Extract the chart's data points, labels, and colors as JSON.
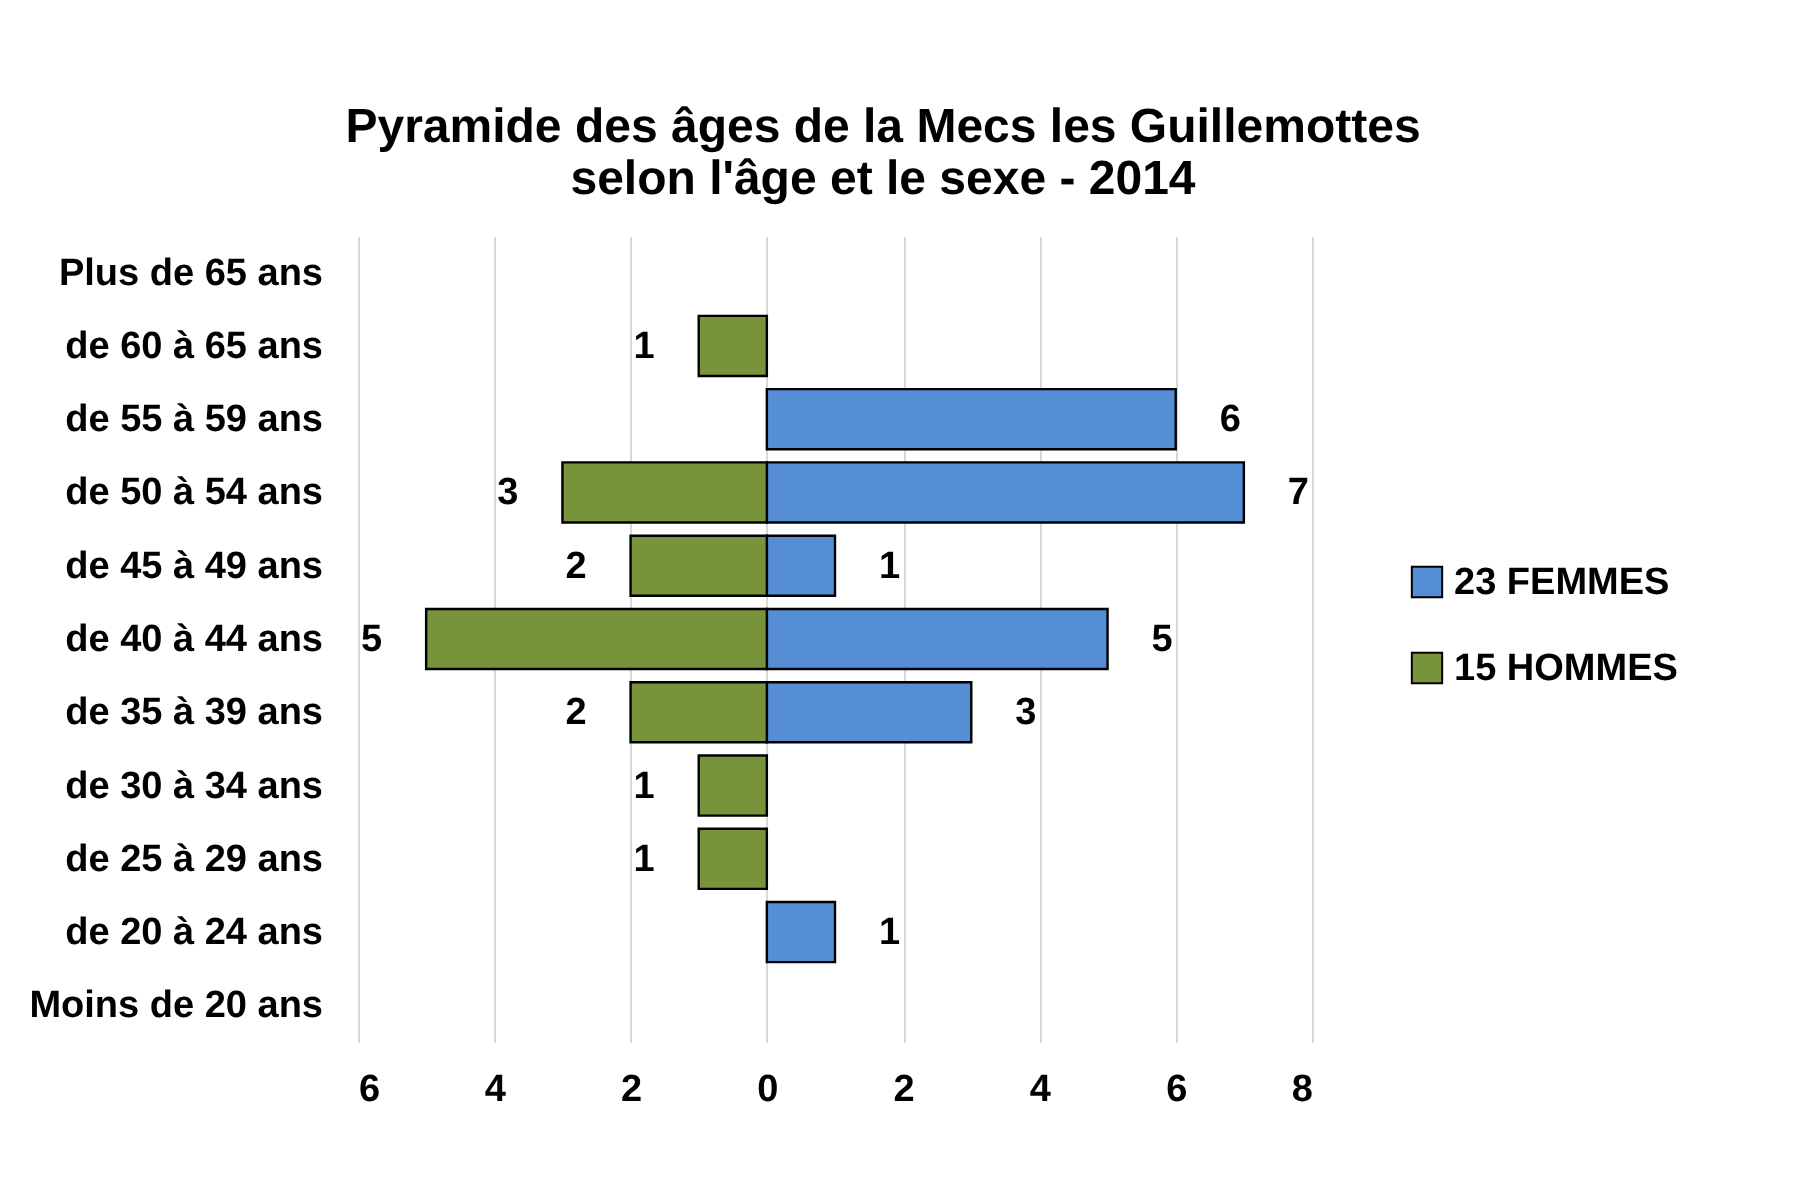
{
  "chart_data": {
    "type": "bar",
    "orientation": "horizontal",
    "title": "Pyramide des âges de la Mecs les Guillemottes\nselon l'âge et le sexe - 2014",
    "categories": [
      "Plus de 65 ans",
      "de 60 à 65 ans",
      "de 55 à 59 ans",
      "de 50 à 54 ans",
      "de 45 à 49 ans",
      "de 40 à 44 ans",
      "de 35 à 39 ans",
      "de 30 à 34 ans",
      "de 25 à 29 ans",
      "de 20 à 24 ans",
      "Moins de 20 ans"
    ],
    "series": [
      {
        "name": "23 FEMMES",
        "color": "#558ed5",
        "values": [
          null,
          null,
          6,
          7,
          1,
          5,
          3,
          null,
          null,
          1,
          null
        ],
        "value_labels": [
          null,
          null,
          "6",
          "7",
          "1",
          "5",
          "3",
          null,
          null,
          "1",
          null
        ]
      },
      {
        "name": "15 HOMMES",
        "color": "#77933c",
        "values": [
          null,
          1,
          null,
          3,
          2,
          5,
          2,
          1,
          1,
          null,
          null
        ],
        "base": [
          null,
          -1,
          null,
          -3,
          -2,
          -5,
          -2,
          -1,
          -1,
          null,
          null
        ],
        "value_labels": [
          null,
          "1",
          null,
          "3",
          "2",
          "5",
          "2",
          "1",
          "1",
          null,
          null
        ]
      }
    ],
    "xlim": [
      -6,
      8
    ],
    "xticks": [
      {
        "value": -6,
        "label": "6"
      },
      {
        "value": -4,
        "label": "4"
      },
      {
        "value": -2,
        "label": "2"
      },
      0,
      2,
      4,
      6,
      8
    ],
    "grid": "x",
    "legend": "right"
  }
}
